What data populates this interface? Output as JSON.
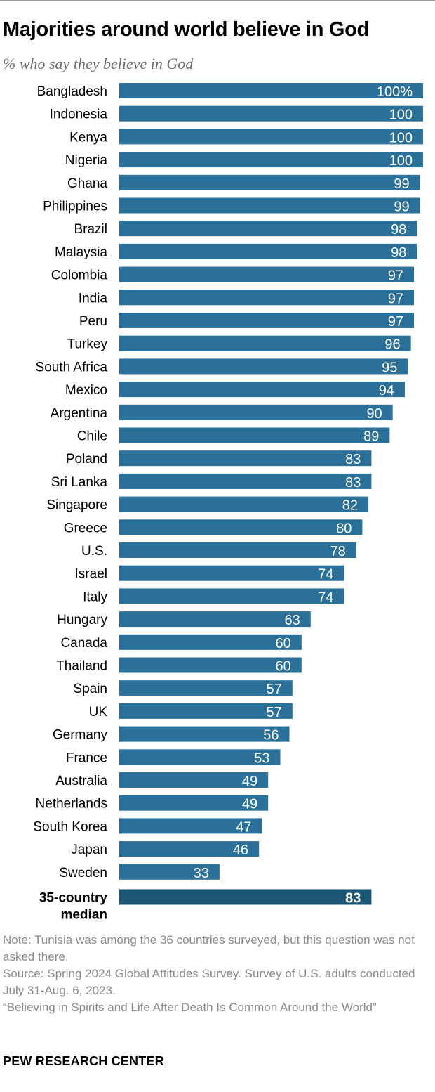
{
  "title": "Majorities around world believe in God",
  "subtitle": "% who say they believe in God",
  "chart_data": {
    "type": "bar",
    "orientation": "horizontal",
    "categories": [
      "Bangladesh",
      "Indonesia",
      "Kenya",
      "Nigeria",
      "Ghana",
      "Philippines",
      "Brazil",
      "Malaysia",
      "Colombia",
      "India",
      "Peru",
      "Turkey",
      "South Africa",
      "Mexico",
      "Argentina",
      "Chile",
      "Poland",
      "Sri Lanka",
      "Singapore",
      "Greece",
      "U.S.",
      "Israel",
      "Italy",
      "Hungary",
      "Canada",
      "Thailand",
      "Spain",
      "UK",
      "Germany",
      "France",
      "Australia",
      "Netherlands",
      "South Korea",
      "Japan",
      "Sweden"
    ],
    "values": [
      100,
      100,
      100,
      100,
      99,
      99,
      98,
      98,
      97,
      97,
      97,
      96,
      95,
      94,
      90,
      89,
      83,
      83,
      82,
      80,
      78,
      74,
      74,
      63,
      60,
      60,
      57,
      57,
      56,
      53,
      49,
      49,
      47,
      46,
      33
    ],
    "value_labels": [
      "100%",
      "100",
      "100",
      "100",
      "99",
      "99",
      "98",
      "98",
      "97",
      "97",
      "97",
      "96",
      "95",
      "94",
      "90",
      "89",
      "83",
      "83",
      "82",
      "80",
      "78",
      "74",
      "74",
      "63",
      "60",
      "60",
      "57",
      "57",
      "56",
      "53",
      "49",
      "49",
      "47",
      "46",
      "33"
    ],
    "xlim": [
      0,
      100
    ],
    "median": {
      "label_lines": [
        "35-country",
        "median"
      ],
      "value": 83,
      "value_label": "83"
    },
    "colors": {
      "bar": "#2a7099",
      "median_bar": "#1c5675",
      "label_text": "#ffffff"
    },
    "grid": false,
    "legend": "none"
  },
  "footer": {
    "note": "Note: Tunisia was among the 36 countries surveyed, but this question was not asked there.",
    "source": "Source: Spring 2024 Global Attitudes Survey. Survey of U.S. adults conducted July 31-Aug. 6, 2023.",
    "report": "“Believing in Spirits and Life After Death Is Common Around the World”"
  },
  "brand": "PEW RESEARCH CENTER"
}
